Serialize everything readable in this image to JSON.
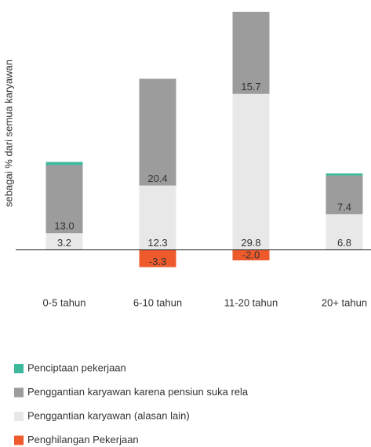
{
  "chart_data": {
    "type": "stacked_bar",
    "y_label": "sebagai % dari semua karyawan",
    "categories": [
      "0-5 tahun",
      "6-10 tahun",
      "11-20 tahun",
      "20+ tahun"
    ],
    "series": [
      {
        "name": "Penciptaan pekerjaan",
        "color": "#3fb99c",
        "values": [
          0.6,
          0,
          0,
          0.4
        ],
        "show_labels": false
      },
      {
        "name": "Penggantian karyawan karena pensiun suka rela",
        "color": "#9d9c9c",
        "values": [
          13.0,
          20.4,
          15.7,
          7.4
        ],
        "value_labels": [
          "13.0",
          "20.4",
          "15.7",
          "7.4"
        ],
        "show_labels": true
      },
      {
        "name": "Penggantian karyawan (alasan lain)",
        "color": "#e8e8e8",
        "values": [
          3.2,
          12.3,
          29.8,
          6.8
        ],
        "value_labels": [
          "3.2",
          "12.3",
          "29.8",
          "6.8"
        ],
        "show_labels": true
      },
      {
        "name": "Penghilangan Pekerjaan",
        "color": "#ee5a2c",
        "values": [
          0,
          -3.3,
          -2.0,
          0
        ],
        "value_labels": [
          null,
          "-3.3",
          "-2.0",
          null
        ],
        "show_labels": true
      }
    ],
    "ylim": [
      -5,
      45.5
    ]
  }
}
